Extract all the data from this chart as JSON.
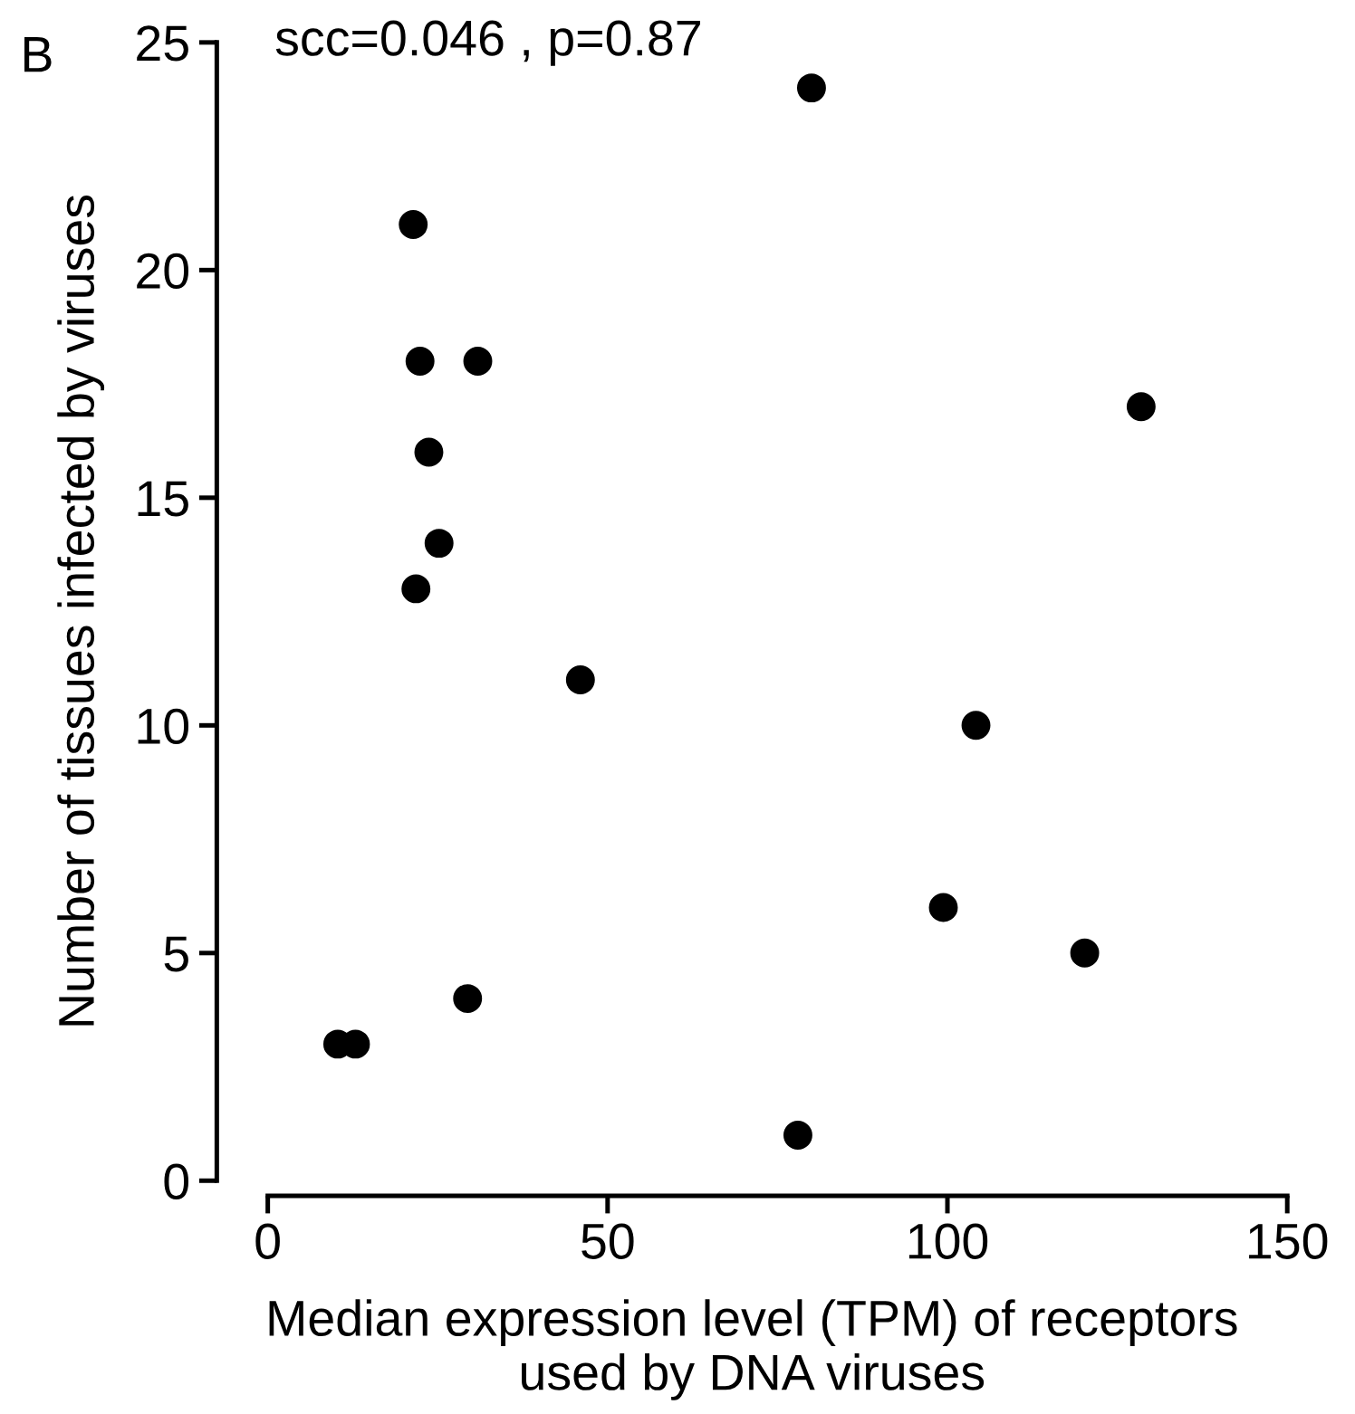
{
  "chart_data": {
    "type": "scatter",
    "xlabel": "Median expression level (TPM) of receptors\nused by DNA viruses",
    "ylabel": "Number of tissues infected by viruses",
    "annotations": [
      "B",
      "scc=0.046 , p=0.87"
    ],
    "series": [
      {
        "color": "#000000",
        "x": [
          80,
          21.4,
          22.4,
          30.9,
          23.7,
          25.2,
          21.8,
          128.5,
          46,
          104.2,
          99.4,
          120.2,
          29.4,
          10.3,
          12.9,
          78
        ],
        "values": [
          24,
          21,
          18,
          18,
          16,
          14,
          13,
          17,
          11,
          10,
          6,
          5,
          4,
          3,
          3,
          1
        ]
      }
    ],
    "xlim": [
      -7.5,
      150
    ],
    "ylim": [
      0,
      25
    ],
    "xticks": [
      0,
      50,
      100,
      150
    ],
    "yticks": [
      0,
      5,
      10,
      15,
      20,
      25
    ],
    "grid": false,
    "marker": "circle",
    "legend": false
  }
}
